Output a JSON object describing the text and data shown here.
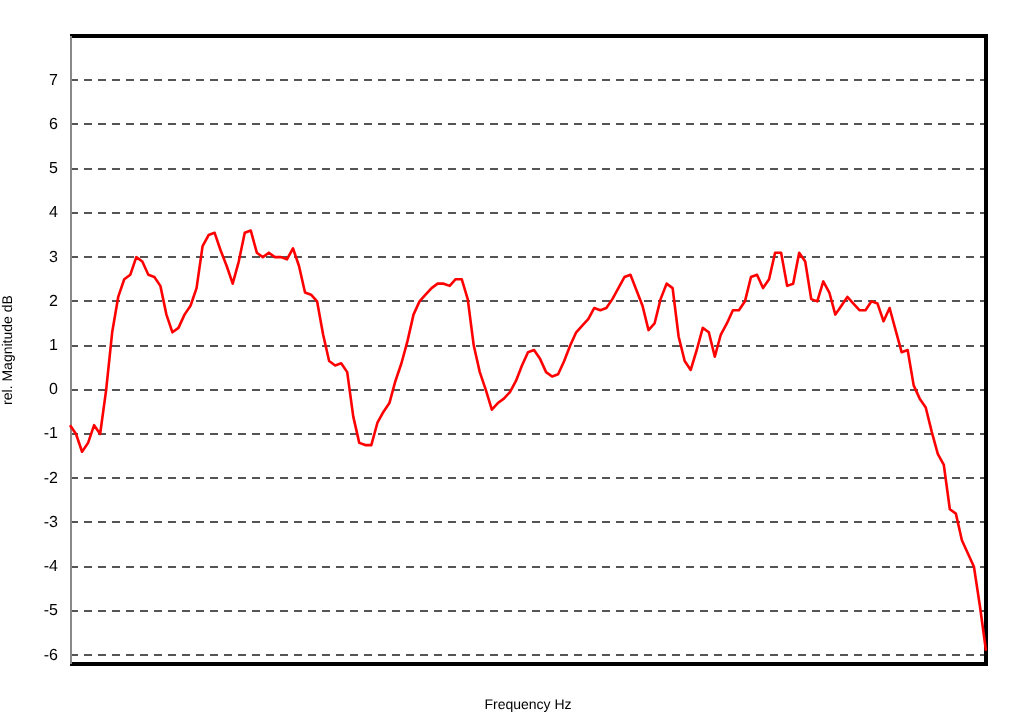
{
  "chart_data": {
    "type": "line",
    "xlabel": "Frequency Hz",
    "ylabel": "rel. Magnitude dB",
    "grid": "y",
    "legend": false,
    "marker": "none",
    "line_style": "solid",
    "tick_labels": "y",
    "ylim": [
      -6.2,
      8
    ],
    "yticks": [
      -6,
      -5,
      -4,
      -3,
      -2,
      -1,
      0,
      1,
      2,
      3,
      4,
      5,
      6,
      7
    ],
    "categories": [
      null,
      null,
      null,
      null,
      null,
      null,
      null,
      null,
      null,
      null,
      null,
      null,
      null,
      null,
      null,
      null,
      null,
      null,
      null,
      null,
      null,
      null,
      null,
      null,
      null,
      null,
      null,
      null,
      null,
      null,
      null,
      null,
      null,
      null,
      null,
      null,
      null,
      null,
      null,
      null,
      null,
      null,
      null,
      null,
      null,
      null,
      null,
      null,
      null,
      null,
      null,
      null,
      null,
      null,
      null,
      null,
      null,
      null,
      null,
      null,
      null,
      null,
      null,
      null,
      null,
      null,
      null,
      null,
      null,
      null,
      null,
      null,
      null,
      null,
      null,
      null,
      null,
      null,
      null,
      null,
      null,
      null,
      null,
      null,
      null,
      null,
      null,
      null,
      null,
      null,
      null,
      null,
      null,
      null,
      null,
      null,
      null,
      null,
      null,
      null,
      null,
      null,
      null,
      null,
      null,
      null,
      null,
      null,
      null,
      null,
      null,
      null,
      null,
      null,
      null,
      null,
      null,
      null,
      null,
      null,
      null,
      null,
      null,
      null,
      null,
      null,
      null,
      null,
      null,
      null,
      null,
      null,
      null,
      null,
      null,
      null,
      null,
      null,
      null,
      null,
      null,
      null,
      null,
      null,
      null,
      null,
      null,
      null,
      null,
      null,
      null,
      null,
      null
    ],
    "series": [
      {
        "color": "#ff0000",
        "values": [
          -0.8,
          -1.0,
          -1.4,
          -1.2,
          -0.8,
          -1.0,
          0.0,
          1.3,
          2.1,
          2.5,
          2.6,
          3.0,
          2.9,
          2.6,
          2.55,
          2.35,
          1.7,
          1.3,
          1.4,
          1.7,
          1.9,
          2.3,
          3.25,
          3.5,
          3.55,
          3.15,
          2.8,
          2.4,
          2.9,
          3.55,
          3.6,
          3.1,
          3.0,
          3.1,
          3.0,
          3.0,
          2.95,
          3.2,
          2.8,
          2.2,
          2.15,
          2.0,
          1.25,
          0.65,
          0.55,
          0.6,
          0.4,
          -0.6,
          -1.2,
          -1.25,
          -1.25,
          -0.75,
          -0.5,
          -0.3,
          0.2,
          0.6,
          1.1,
          1.7,
          2.0,
          2.15,
          2.3,
          2.4,
          2.4,
          2.35,
          2.5,
          2.5,
          2.05,
          1.0,
          0.4,
          0.0,
          -0.45,
          -0.3,
          -0.2,
          -0.05,
          0.2,
          0.55,
          0.85,
          0.9,
          0.7,
          0.4,
          0.3,
          0.35,
          0.65,
          1.0,
          1.3,
          1.45,
          1.6,
          1.85,
          1.8,
          1.85,
          2.05,
          2.3,
          2.55,
          2.6,
          2.25,
          1.9,
          1.35,
          1.5,
          2.05,
          2.4,
          2.3,
          1.2,
          0.65,
          0.45,
          0.9,
          1.4,
          1.3,
          0.75,
          1.25,
          1.5,
          1.8,
          1.8,
          2.0,
          2.55,
          2.6,
          2.3,
          2.5,
          3.1,
          3.1,
          2.35,
          2.4,
          3.1,
          2.9,
          2.05,
          2.0,
          2.45,
          2.2,
          1.7,
          1.9,
          2.1,
          1.95,
          1.8,
          1.8,
          2.0,
          1.95,
          1.55,
          1.85,
          1.35,
          0.85,
          0.9,
          0.1,
          -0.2,
          -0.4,
          -0.95,
          -1.45,
          -1.7,
          -2.7,
          -2.8,
          -3.4,
          -3.7,
          -4.0,
          -4.9,
          -5.9
        ]
      }
    ]
  }
}
